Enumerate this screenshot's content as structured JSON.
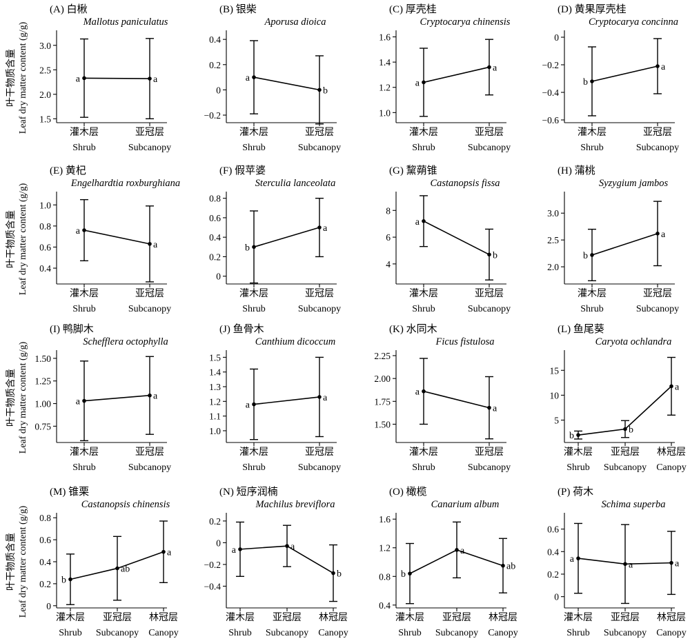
{
  "ylabel_cn": "叶干物质含量",
  "ylabel_en": "Leaf dry matter content (g/g)",
  "chart_data": [
    {
      "type": "line",
      "title": "(A) 白楸",
      "species": "Mallotus paniculatus",
      "categories_cn": [
        "灌木层",
        "亚冠层"
      ],
      "categories_en": [
        "Shrub",
        "Subcanopy"
      ],
      "values": [
        2.33,
        2.32
      ],
      "errors": [
        0.8,
        0.82
      ],
      "letters": [
        "a",
        "a"
      ],
      "ylim": [
        1.42,
        3.25
      ],
      "yticks": [
        {
          "v": 1.5,
          "t": "1.5"
        },
        {
          "v": 2.0,
          "t": "2.0"
        },
        {
          "v": 2.5,
          "t": "2.5"
        },
        {
          "v": 3.0,
          "t": "3.0"
        }
      ]
    },
    {
      "type": "line",
      "title": "(B) 银柴",
      "species": "Aporusa dioica",
      "categories_cn": [
        "灌木层",
        "亚冠层"
      ],
      "categories_en": [
        "Shrub",
        "Subcanopy"
      ],
      "values": [
        0.1,
        0.0
      ],
      "errors": [
        0.29,
        0.27
      ],
      "letters": [
        "a",
        "b"
      ],
      "ylim": [
        -0.26,
        0.45
      ],
      "yticks": [
        {
          "v": -0.2,
          "t": "−0.2"
        },
        {
          "v": 0,
          "t": "0"
        },
        {
          "v": 0.2,
          "t": "0.2"
        },
        {
          "v": 0.4,
          "t": "0.4"
        }
      ]
    },
    {
      "type": "line",
      "title": "(C) 厚壳桂",
      "species": "Cryptocarya chinensis",
      "categories_cn": [
        "灌木层",
        "亚冠层"
      ],
      "categories_en": [
        "Shrub",
        "Subcanopy"
      ],
      "values": [
        1.24,
        1.36
      ],
      "errors": [
        0.27,
        0.22
      ],
      "letters": [
        "a",
        "a"
      ],
      "ylim": [
        0.92,
        1.63
      ],
      "yticks": [
        {
          "v": 1.0,
          "t": "1.0"
        },
        {
          "v": 1.2,
          "t": "1.2"
        },
        {
          "v": 1.4,
          "t": "1.4"
        },
        {
          "v": 1.6,
          "t": "1.6"
        }
      ]
    },
    {
      "type": "line",
      "title": "(D) 黄果厚壳桂",
      "species": "Cryptocarya concinna",
      "categories_cn": [
        "灌木层",
        "亚冠层"
      ],
      "categories_en": [
        "Shrub",
        "Subcanopy"
      ],
      "values": [
        -0.32,
        -0.21
      ],
      "errors": [
        0.25,
        0.2
      ],
      "letters": [
        "b",
        "a"
      ],
      "ylim": [
        -0.62,
        0.03
      ],
      "yticks": [
        {
          "v": -0.6,
          "t": "−0.6"
        },
        {
          "v": -0.4,
          "t": "−0.4"
        },
        {
          "v": -0.2,
          "t": "−0.2"
        },
        {
          "v": 0,
          "t": "0"
        }
      ]
    },
    {
      "type": "line",
      "title": "(E) 黄杞",
      "species": "Engelhardtia roxburghiana",
      "categories_cn": [
        "灌木层",
        "亚冠层"
      ],
      "categories_en": [
        "Shrub",
        "Subcanopy"
      ],
      "values": [
        0.76,
        0.63
      ],
      "errors": [
        0.29,
        0.36
      ],
      "letters": [
        "a",
        "a"
      ],
      "ylim": [
        0.25,
        1.1
      ],
      "yticks": [
        {
          "v": 0.4,
          "t": "0.4"
        },
        {
          "v": 0.6,
          "t": "0.6"
        },
        {
          "v": 0.8,
          "t": "0.8"
        },
        {
          "v": 1.0,
          "t": "1.0"
        }
      ]
    },
    {
      "type": "line",
      "title": "(F) 假苹婆",
      "species": "Sterculia lanceolata",
      "categories_cn": [
        "灌木层",
        "亚冠层"
      ],
      "categories_en": [
        "Shrub",
        "Subcanopy"
      ],
      "values": [
        0.3,
        0.5
      ],
      "errors": [
        0.37,
        0.3
      ],
      "letters": [
        "b",
        "a"
      ],
      "ylim": [
        -0.08,
        0.84
      ],
      "yticks": [
        {
          "v": 0,
          "t": "0"
        },
        {
          "v": 0.2,
          "t": "0.2"
        },
        {
          "v": 0.4,
          "t": "0.4"
        },
        {
          "v": 0.6,
          "t": "0.6"
        },
        {
          "v": 0.8,
          "t": "0.8"
        }
      ]
    },
    {
      "type": "line",
      "title": "(G) 黧蒴锥",
      "species": "Castanopsis fissa",
      "categories_cn": [
        "灌木层",
        "亚冠层"
      ],
      "categories_en": [
        "Shrub",
        "Subcanopy"
      ],
      "values": [
        7.2,
        4.7
      ],
      "errors": [
        1.9,
        1.9
      ],
      "letters": [
        "a",
        "b"
      ],
      "ylim": [
        2.5,
        9.2
      ],
      "yticks": [
        {
          "v": 4,
          "t": "4"
        },
        {
          "v": 6,
          "t": "6"
        },
        {
          "v": 8,
          "t": "8"
        }
      ]
    },
    {
      "type": "line",
      "title": "(H) 蒲桃",
      "species": "Syzygium jambos",
      "categories_cn": [
        "灌木层",
        "亚冠层"
      ],
      "categories_en": [
        "Shrub",
        "Subcanopy"
      ],
      "values": [
        2.22,
        2.62
      ],
      "errors": [
        0.48,
        0.6
      ],
      "letters": [
        "b",
        "a"
      ],
      "ylim": [
        1.68,
        3.35
      ],
      "yticks": [
        {
          "v": 2.0,
          "t": "2.0"
        },
        {
          "v": 2.5,
          "t": "2.5"
        },
        {
          "v": 3.0,
          "t": "3.0"
        }
      ]
    },
    {
      "type": "line",
      "title": "(I) 鸭脚木",
      "species": "Schefflera octophylla",
      "categories_cn": [
        "灌木层",
        "亚冠层"
      ],
      "categories_en": [
        "Shrub",
        "Subcanopy"
      ],
      "values": [
        1.03,
        1.09
      ],
      "errors": [
        0.44,
        0.43
      ],
      "letters": [
        "a",
        "a"
      ],
      "ylim": [
        0.57,
        1.56
      ],
      "yticks": [
        {
          "v": 0.75,
          "t": "0.75"
        },
        {
          "v": 1.0,
          "t": "1.00"
        },
        {
          "v": 1.25,
          "t": "1.25"
        },
        {
          "v": 1.5,
          "t": "1.50"
        }
      ]
    },
    {
      "type": "line",
      "title": "(J) 鱼骨木",
      "species": "Canthium dicoccum",
      "categories_cn": [
        "灌木层",
        "亚冠层"
      ],
      "categories_en": [
        "Shrub",
        "Subcanopy"
      ],
      "values": [
        1.18,
        1.23
      ],
      "errors": [
        0.24,
        0.27
      ],
      "letters": [
        "a",
        "a"
      ],
      "ylim": [
        0.92,
        1.53
      ],
      "yticks": [
        {
          "v": 1.0,
          "t": "1.0"
        },
        {
          "v": 1.1,
          "t": "1.1"
        },
        {
          "v": 1.2,
          "t": "1.2"
        },
        {
          "v": 1.3,
          "t": "1.3"
        },
        {
          "v": 1.4,
          "t": "1.4"
        },
        {
          "v": 1.5,
          "t": "1.5"
        }
      ]
    },
    {
      "type": "line",
      "title": "(K) 水同木",
      "species": "Ficus fistulosa",
      "categories_cn": [
        "灌木层",
        "亚冠层"
      ],
      "categories_en": [
        "Shrub",
        "Subcanopy"
      ],
      "values": [
        1.86,
        1.68
      ],
      "errors": [
        0.36,
        0.34
      ],
      "letters": [
        "a",
        "a"
      ],
      "ylim": [
        1.3,
        2.28
      ],
      "yticks": [
        {
          "v": 1.5,
          "t": "1.50"
        },
        {
          "v": 1.75,
          "t": "1.75"
        },
        {
          "v": 2.0,
          "t": "2.00"
        },
        {
          "v": 2.25,
          "t": "2.25"
        }
      ]
    },
    {
      "type": "line",
      "title": "(L) 鱼尾葵",
      "species": "Caryota ochlandra",
      "categories_cn": [
        "灌木层",
        "亚冠层",
        "林冠层"
      ],
      "categories_en": [
        "Shrub",
        "Subcanopy",
        "Canopy"
      ],
      "values": [
        2.0,
        3.2,
        11.8
      ],
      "errors": [
        0.8,
        1.7,
        5.8
      ],
      "letters": [
        "b",
        "b",
        "a"
      ],
      "ylim": [
        0.5,
        18.5
      ],
      "yticks": [
        {
          "v": 5,
          "t": "5"
        },
        {
          "v": 10,
          "t": "10"
        },
        {
          "v": 15,
          "t": "15"
        }
      ]
    },
    {
      "type": "line",
      "title": "(M) 锥栗",
      "species": "Castanopsis chinensis",
      "categories_cn": [
        "灌木层",
        "亚冠层",
        "林冠层"
      ],
      "categories_en": [
        "Shrub",
        "Subcanopy",
        "Canopy"
      ],
      "values": [
        0.24,
        0.34,
        0.49
      ],
      "errors": [
        0.23,
        0.29,
        0.28
      ],
      "letters": [
        "b",
        "ab",
        "a"
      ],
      "ylim": [
        -0.02,
        0.82
      ],
      "yticks": [
        {
          "v": 0,
          "t": "0"
        },
        {
          "v": 0.2,
          "t": "0.2"
        },
        {
          "v": 0.4,
          "t": "0.4"
        },
        {
          "v": 0.6,
          "t": "0.6"
        },
        {
          "v": 0.8,
          "t": "0.8"
        }
      ]
    },
    {
      "type": "line",
      "title": "(N) 短序润楠",
      "species": "Machilus breviflora",
      "categories_cn": [
        "灌木层",
        "亚冠层",
        "林冠层"
      ],
      "categories_en": [
        "Shrub",
        "Subcanopy",
        "Canopy"
      ],
      "values": [
        -0.06,
        -0.03,
        -0.28
      ],
      "errors": [
        0.25,
        0.19,
        0.26
      ],
      "letters": [
        "a",
        "a",
        "b"
      ],
      "ylim": [
        -0.6,
        0.25
      ],
      "yticks": [
        {
          "v": -0.4,
          "t": "−0.4"
        },
        {
          "v": -0.2,
          "t": "−0.2"
        },
        {
          "v": 0,
          "t": "0"
        },
        {
          "v": 0.2,
          "t": "0.2"
        }
      ]
    },
    {
      "type": "line",
      "title": "(O) 橄榄",
      "species": "Canarium album",
      "categories_cn": [
        "灌木层",
        "亚冠层",
        "林冠层"
      ],
      "categories_en": [
        "Shrub",
        "Subcanopy",
        "Canopy"
      ],
      "values": [
        0.84,
        1.17,
        0.95
      ],
      "errors": [
        0.42,
        0.39,
        0.38
      ],
      "letters": [
        "b",
        "a",
        "ab"
      ],
      "ylim": [
        0.36,
        1.65
      ],
      "yticks": [
        {
          "v": 0.4,
          "t": "0.4"
        },
        {
          "v": 0.8,
          "t": "0.8"
        },
        {
          "v": 1.2,
          "t": "1.2"
        },
        {
          "v": 1.6,
          "t": "1.6"
        }
      ]
    },
    {
      "type": "line",
      "title": "(P) 荷木",
      "species": "Schima superba",
      "categories_cn": [
        "灌木层",
        "亚冠层",
        "林冠层"
      ],
      "categories_en": [
        "Shrub",
        "Subcanopy",
        "Canopy"
      ],
      "values": [
        0.34,
        0.29,
        0.3
      ],
      "errors": [
        0.31,
        0.35,
        0.28
      ],
      "letters": [
        "a",
        "a",
        "a"
      ],
      "ylim": [
        -0.1,
        0.72
      ],
      "yticks": [
        {
          "v": 0,
          "t": "0"
        },
        {
          "v": 0.2,
          "t": "0.2"
        },
        {
          "v": 0.4,
          "t": "0.4"
        },
        {
          "v": 0.6,
          "t": "0.6"
        }
      ]
    }
  ]
}
